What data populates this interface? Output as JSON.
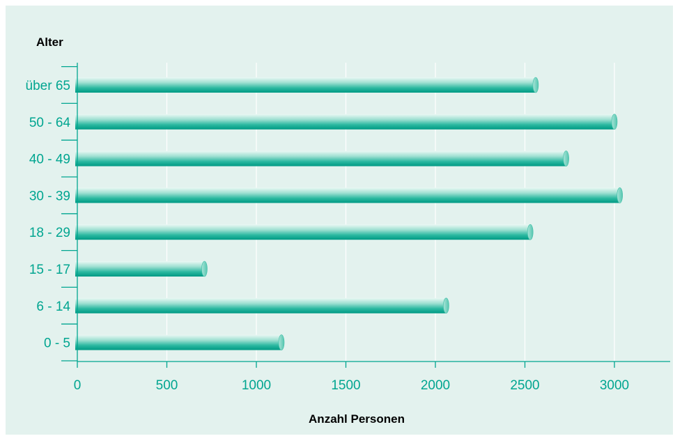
{
  "chart_data": {
    "type": "bar",
    "orientation": "horizontal",
    "ylabel": "Alter",
    "xlabel": "Anzahl Personen",
    "categories": [
      "0 - 5",
      "6 - 14",
      "15 - 17",
      "18 - 29",
      "30 - 39",
      "40 - 49",
      "50 - 64",
      "über 65"
    ],
    "values": [
      1140,
      2060,
      710,
      2530,
      3030,
      2730,
      3000,
      2560
    ],
    "xlim": [
      0,
      3300
    ],
    "xticks": [
      0,
      500,
      1000,
      1500,
      2000,
      2500,
      3000
    ],
    "xtick_labels": [
      "0",
      "500",
      "1000",
      "1500",
      "2000",
      "2500",
      "3000"
    ],
    "grid": "vertical",
    "colors": {
      "background": "#e3f2ee",
      "bar_light": "#d9f3ec",
      "bar_mid": "#6fd0bd",
      "bar_dark": "#00a58d",
      "bar_cap": "#7fd6c4",
      "text": "#00a590",
      "axis": "#00a590",
      "grid": "#ffffff",
      "title": "#000000"
    }
  }
}
